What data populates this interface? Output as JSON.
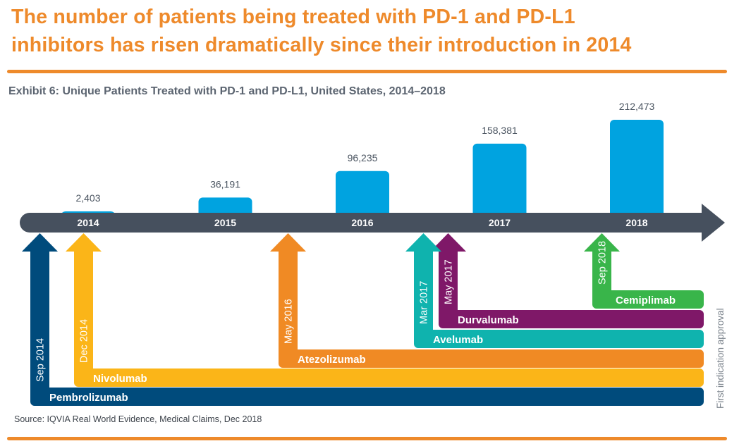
{
  "headline": {
    "line1": "The number of patients being treated with PD-1 and PD-L1",
    "line2": "inhibitors has risen dramatically since their introduction in 2014"
  },
  "exhibit_title": "Exhibit 6: Unique Patients Treated with PD-1 and PD-L1, United States, 2014–2018",
  "source": "Source: IQVIA Real World Evidence, Medical Claims, Dec 2018",
  "side_note": "First indication approval",
  "colors": {
    "accent_orange": "#ee8a2b",
    "bar_blue": "#00a3e0",
    "timeline": "#46505e",
    "value_label": "#4b5561"
  },
  "chart_data": {
    "type": "bar",
    "title": "Exhibit 6: Unique Patients Treated with PD-1 and PD-L1, United States, 2014–2018",
    "xlabel": "",
    "ylabel": "Unique patients",
    "categories": [
      "2014",
      "2015",
      "2016",
      "2017",
      "2018"
    ],
    "values": [
      2403,
      36191,
      96235,
      158381,
      212473
    ],
    "value_labels": [
      "2,403",
      "36,191",
      "96,235",
      "158,381",
      "212,473"
    ],
    "ylim": [
      0,
      212473
    ],
    "grid": false,
    "legend": "none",
    "approvals": [
      {
        "drug": "Pembrolizumab",
        "date": "Sep 2014",
        "year_position": 2014.67,
        "color": "#004b7c"
      },
      {
        "drug": "Nivolumab",
        "date": "Dec 2014",
        "year_position": 2014.92,
        "color": "#fbb518"
      },
      {
        "drug": "Atezolizumab",
        "date": "May 2016",
        "year_position": 2016.37,
        "color": "#f08a24"
      },
      {
        "drug": "Avelumab",
        "date": "Mar 2017",
        "year_position": 2017.2,
        "color": "#0fb3ae"
      },
      {
        "drug": "Durvalumab",
        "date": "May 2017",
        "year_position": 2017.37,
        "color": "#7f1868"
      },
      {
        "drug": "Cemiplimab",
        "date": "Sep 2018",
        "year_position": 2018.67,
        "color": "#39b54a"
      }
    ]
  }
}
